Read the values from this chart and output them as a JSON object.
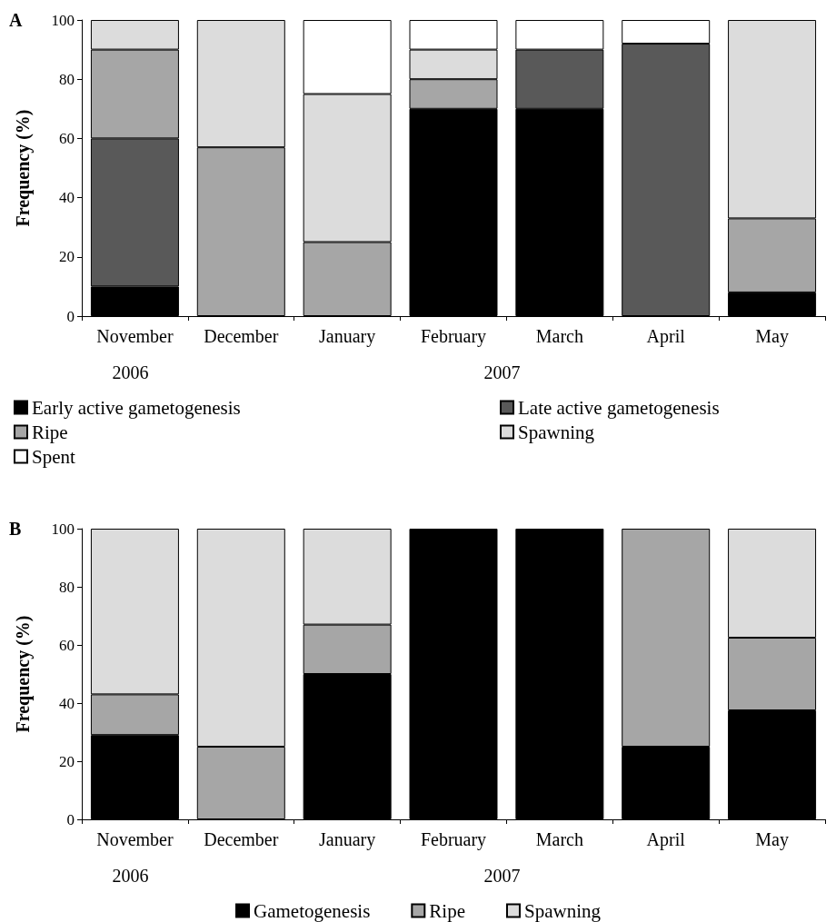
{
  "chart_data": [
    {
      "type": "bar",
      "title": "A",
      "ylabel": "Frequency (%)",
      "stacked": true,
      "categories": [
        "November",
        "December",
        "January",
        "February",
        "March",
        "April",
        "May"
      ],
      "ylim": [
        0,
        100
      ],
      "yticks": [
        0,
        20,
        40,
        60,
        80,
        100
      ],
      "grid": false,
      "legend": "bottom",
      "annotations": [
        "2006",
        "2007"
      ],
      "series": [
        {
          "name": "Early active gametogenesis",
          "color": "#000000",
          "values": [
            10,
            null,
            null,
            70,
            70,
            null,
            8
          ]
        },
        {
          "name": "Late active gametogenesis",
          "color": "#595959",
          "values": [
            50,
            null,
            null,
            null,
            20,
            92,
            null
          ]
        },
        {
          "name": "Ripe",
          "color": "#a6a6a6",
          "values": [
            30,
            57,
            25,
            10,
            null,
            null,
            25
          ]
        },
        {
          "name": "Spawning",
          "color": "#dcdcdc",
          "values": [
            10,
            43,
            50,
            10,
            null,
            null,
            67
          ]
        },
        {
          "name": "Spent",
          "color": "#ffffff",
          "values": [
            null,
            null,
            25,
            10,
            10,
            8,
            null
          ]
        }
      ]
    },
    {
      "type": "bar",
      "title": "B",
      "ylabel": "Frequency (%)",
      "stacked": true,
      "categories": [
        "November",
        "December",
        "January",
        "February",
        "March",
        "April",
        "May"
      ],
      "ylim": [
        0,
        100
      ],
      "yticks": [
        0,
        20,
        40,
        60,
        80,
        100
      ],
      "grid": false,
      "legend": "bottom",
      "annotations": [
        "2006",
        "2007"
      ],
      "series": [
        {
          "name": "Gametogenesis",
          "color": "#000000",
          "values": [
            29,
            null,
            50,
            100,
            100,
            25,
            37.5
          ]
        },
        {
          "name": "Ripe",
          "color": "#a6a6a6",
          "values": [
            14,
            25,
            17,
            null,
            null,
            75,
            25
          ]
        },
        {
          "name": "Spawning",
          "color": "#dcdcdc",
          "values": [
            57,
            75,
            33,
            null,
            null,
            null,
            37.5
          ]
        }
      ]
    }
  ]
}
